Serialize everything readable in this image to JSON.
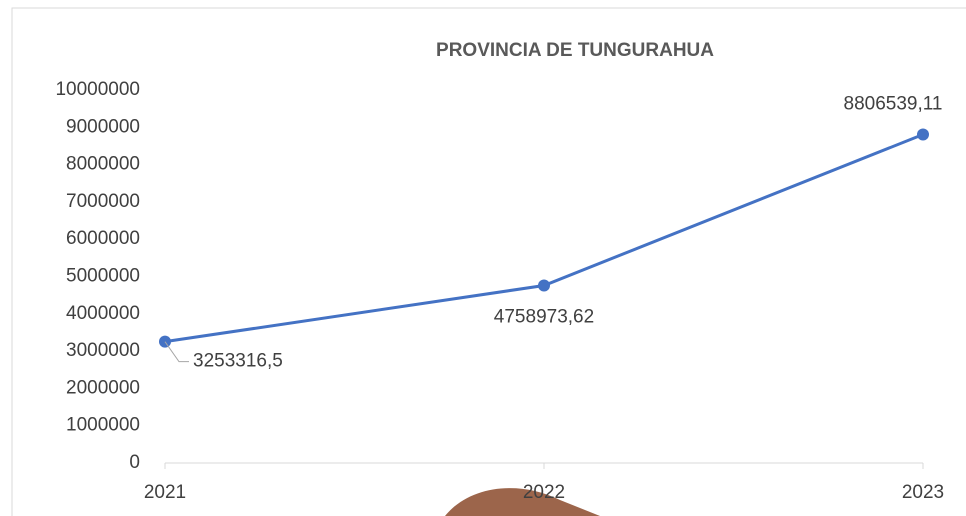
{
  "chart_data": {
    "type": "line",
    "title": "PROVINCIA DE TUNGURAHUA",
    "categories": [
      "2021",
      "2022",
      "2023"
    ],
    "series": [
      {
        "name": "PROVINCIA DE TUNGURAHUA",
        "color": "#4472c4",
        "values": [
          3253316.5,
          4758973.62,
          8806539.11
        ],
        "value_labels": [
          "3253316,5",
          "4758973,62",
          "8806539,11"
        ]
      }
    ],
    "ylim": [
      0,
      10000000
    ],
    "yticks": [
      0,
      1000000,
      2000000,
      3000000,
      4000000,
      5000000,
      6000000,
      7000000,
      8000000,
      9000000,
      10000000
    ],
    "grid": false
  }
}
